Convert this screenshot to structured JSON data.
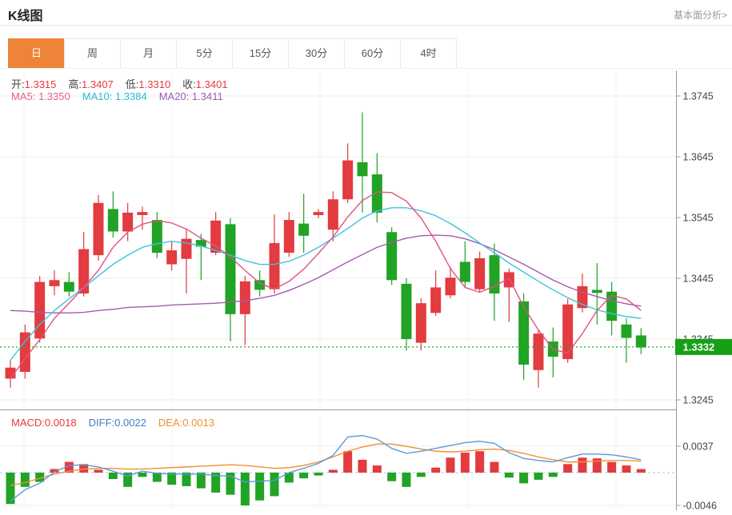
{
  "header": {
    "title": "K线图",
    "analysis_link": "基本面分析>"
  },
  "tabs": {
    "items": [
      {
        "label": "日",
        "active": true
      },
      {
        "label": "周",
        "active": false
      },
      {
        "label": "月",
        "active": false
      },
      {
        "label": "5分",
        "active": false
      },
      {
        "label": "15分",
        "active": false
      },
      {
        "label": "30分",
        "active": false
      },
      {
        "label": "60分",
        "active": false
      },
      {
        "label": "4时",
        "active": false
      }
    ]
  },
  "ohlc_legend": {
    "open_label": "开:",
    "open": "1.3315",
    "high_label": "高:",
    "high": "1.3407",
    "low_label": "低:",
    "low": "1.3310",
    "close_label": "收:",
    "close": "1.3401"
  },
  "ma_legend": {
    "ma5_label": "MA5:",
    "ma5": "1.3350",
    "ma10_label": "MA10:",
    "ma10": "1.3384",
    "ma20_label": "MA20:",
    "ma20": "1.3411"
  },
  "macd_legend": {
    "macd_label": "MACD:",
    "macd": "0.0018",
    "diff_label": "DIFF:",
    "diff": "0.0022",
    "dea_label": "DEA:",
    "dea": "0.0013"
  },
  "price_axis": {
    "ticks": [
      "1.3745",
      "1.3645",
      "1.3545",
      "1.3445",
      "1.3345",
      "1.3245"
    ],
    "current": "1.3332"
  },
  "macd_axis": {
    "ticks": [
      "0.0037",
      "-0.0046"
    ]
  },
  "colors": {
    "up": "#e23b40",
    "down": "#21a325",
    "ma5": "#e0547e",
    "ma10": "#3fc3dc",
    "ma20": "#a55ab0",
    "diff": "#5b9bd5",
    "dea": "#f09033",
    "ma5_text": "#e8608c",
    "ma10_text": "#29b9d0",
    "ma20_text": "#9b59b6",
    "diff_text": "#3f7fc1",
    "dea_text": "#ef8f2f",
    "tab_accent": "#ed8437",
    "grid": "#ededed",
    "axis": "#999999",
    "current_line": "#2aa52a",
    "current_badge": "#16a016",
    "zero_dash": "#a9c9e9"
  },
  "chart_data": {
    "type": "candlestick",
    "title": "K线图 daily candlestick with MA5/MA10/MA20 and MACD",
    "price_range": [
      1.3245,
      1.3745
    ],
    "macd_range": [
      -0.0046,
      0.0037
    ],
    "current_price": 1.3332,
    "grid": true,
    "candles_ohlc": [
      [
        1.328,
        1.331,
        1.3265,
        1.3298
      ],
      [
        1.3291,
        1.3369,
        1.328,
        1.3356
      ],
      [
        1.3346,
        1.3449,
        1.3339,
        1.3439
      ],
      [
        1.3432,
        1.3458,
        1.3417,
        1.3442
      ],
      [
        1.3439,
        1.3455,
        1.3415,
        1.3423
      ],
      [
        1.342,
        1.3521,
        1.3415,
        1.3493
      ],
      [
        1.3483,
        1.3582,
        1.3474,
        1.3569
      ],
      [
        1.3559,
        1.3588,
        1.3512,
        1.3522
      ],
      [
        1.3522,
        1.3569,
        1.3506,
        1.3553
      ],
      [
        1.3549,
        1.3563,
        1.3525,
        1.3554
      ],
      [
        1.3541,
        1.3554,
        1.3478,
        1.3487
      ],
      [
        1.3468,
        1.3506,
        1.3458,
        1.3491
      ],
      [
        1.3477,
        1.3525,
        1.342,
        1.351
      ],
      [
        1.3508,
        1.3518,
        1.3442,
        1.3497
      ],
      [
        1.3487,
        1.3554,
        1.3483,
        1.354
      ],
      [
        1.3534,
        1.3544,
        1.3341,
        1.3386
      ],
      [
        1.3386,
        1.3449,
        1.3335,
        1.344
      ],
      [
        1.3442,
        1.3458,
        1.3415,
        1.3426
      ],
      [
        1.3427,
        1.355,
        1.342,
        1.3503
      ],
      [
        1.3487,
        1.3554,
        1.348,
        1.3541
      ],
      [
        1.3535,
        1.3584,
        1.3487,
        1.3515
      ],
      [
        1.3549,
        1.3559,
        1.3544,
        1.3554
      ],
      [
        1.3525,
        1.3588,
        1.3506,
        1.3575
      ],
      [
        1.3575,
        1.3667,
        1.3569,
        1.3639
      ],
      [
        1.3636,
        1.3718,
        1.3553,
        1.3613
      ],
      [
        1.3616,
        1.3651,
        1.3537,
        1.3553
      ],
      [
        1.3521,
        1.3529,
        1.3434,
        1.3442
      ],
      [
        1.3436,
        1.3445,
        1.3326,
        1.3345
      ],
      [
        1.3339,
        1.3412,
        1.3326,
        1.3404
      ],
      [
        1.3388,
        1.3458,
        1.3383,
        1.343
      ],
      [
        1.3417,
        1.3464,
        1.3412,
        1.3446
      ],
      [
        1.3472,
        1.3506,
        1.343,
        1.3439
      ],
      [
        1.3427,
        1.3489,
        1.3422,
        1.3478
      ],
      [
        1.3483,
        1.3502,
        1.3375,
        1.342
      ],
      [
        1.343,
        1.3461,
        1.3373,
        1.3455
      ],
      [
        1.3407,
        1.342,
        1.3278,
        1.3303
      ],
      [
        1.3294,
        1.336,
        1.3265,
        1.3354
      ],
      [
        1.3341,
        1.3364,
        1.3282,
        1.3316
      ],
      [
        1.3312,
        1.3411,
        1.3306,
        1.3402
      ],
      [
        1.3396,
        1.3453,
        1.3389,
        1.3432
      ],
      [
        1.3426,
        1.347,
        1.3369,
        1.3421
      ],
      [
        1.3423,
        1.3439,
        1.3351,
        1.3375
      ],
      [
        1.3369,
        1.3379,
        1.3306,
        1.3347
      ],
      [
        1.3351,
        1.3363,
        1.332,
        1.3331
      ]
    ],
    "ma5": [
      1.328,
      1.3313,
      1.3344,
      1.3379,
      1.3404,
      1.343,
      1.3458,
      1.3496,
      1.3521,
      1.3534,
      1.354,
      1.3536,
      1.3526,
      1.3511,
      1.3498,
      1.348,
      1.3458,
      1.3437,
      1.3427,
      1.344,
      1.346,
      1.3486,
      1.3513,
      1.3546,
      1.3573,
      1.3587,
      1.3586,
      1.3572,
      1.3544,
      1.3506,
      1.3461,
      1.343,
      1.3422,
      1.3432,
      1.3445,
      1.3398,
      1.336,
      1.3328,
      1.3322,
      1.3354,
      1.3392,
      1.3417,
      1.3411,
      1.3392
    ],
    "ma10": [
      1.331,
      1.3341,
      1.3369,
      1.3392,
      1.3411,
      1.343,
      1.3449,
      1.3468,
      1.3483,
      1.3496,
      1.3502,
      1.3506,
      1.3503,
      1.3498,
      1.3491,
      1.3483,
      1.3474,
      1.3468,
      1.3468,
      1.3473,
      1.3483,
      1.3496,
      1.3511,
      1.3527,
      1.3544,
      1.3556,
      1.3561,
      1.3561,
      1.3556,
      1.3548,
      1.3535,
      1.352,
      1.3503,
      1.3487,
      1.347,
      1.3455,
      1.344,
      1.3426,
      1.3413,
      1.3402,
      1.3393,
      1.3387,
      1.3382,
      1.3379
    ],
    "ma20": [
      1.3392,
      1.3391,
      1.3389,
      1.3388,
      1.3388,
      1.3389,
      1.3392,
      1.3394,
      1.3397,
      1.3398,
      1.3399,
      1.3401,
      1.3402,
      1.3403,
      1.3404,
      1.3406,
      1.3408,
      1.3412,
      1.3417,
      1.3425,
      1.3435,
      1.3446,
      1.3459,
      1.3472,
      1.3484,
      1.3496,
      1.3504,
      1.3511,
      1.3515,
      1.3516,
      1.3515,
      1.351,
      1.3502,
      1.3492,
      1.348,
      1.3468,
      1.3455,
      1.3442,
      1.3431,
      1.3422,
      1.3415,
      1.3408,
      1.3403,
      1.3399
    ],
    "macd_hist": [
      -0.0044,
      -0.002,
      -0.0013,
      0.0005,
      0.0015,
      0.0012,
      0.0004,
      -0.0009,
      -0.002,
      -0.0006,
      -0.0013,
      -0.0017,
      -0.0019,
      -0.0022,
      -0.0028,
      -0.0031,
      -0.0046,
      -0.0039,
      -0.0033,
      -0.0014,
      -0.0008,
      -0.0004,
      0.0004,
      0.003,
      0.0018,
      0.001,
      -0.0012,
      -0.002,
      -0.0006,
      0.0007,
      0.0021,
      0.0028,
      0.003,
      0.0015,
      -0.0007,
      -0.0015,
      -0.001,
      -0.0006,
      0.0012,
      0.0021,
      0.002,
      0.0015,
      0.001,
      0.0005
    ],
    "diff_line": [
      -0.004,
      -0.0024,
      -0.0015,
      0.0001,
      0.001,
      0.0011,
      0.0008,
      0.0002,
      -0.0005,
      0.0002,
      -0.0001,
      -0.0002,
      -0.0002,
      -0.0002,
      -0.0004,
      -0.0005,
      -0.0013,
      -0.0012,
      -0.0011,
      0.0,
      0.0006,
      0.0013,
      0.0024,
      0.005,
      0.0052,
      0.0047,
      0.0034,
      0.0027,
      0.003,
      0.0034,
      0.0038,
      0.0042,
      0.0044,
      0.0041,
      0.0028,
      0.002,
      0.0017,
      0.0015,
      0.0021,
      0.0026,
      0.0026,
      0.0025,
      0.0022,
      0.0018
    ],
    "dea_line": [
      -0.0018,
      -0.0014,
      -0.0008,
      -0.0002,
      0.0002,
      0.0005,
      0.0006,
      0.0006,
      0.0005,
      0.0005,
      0.0006,
      0.0007,
      0.0008,
      0.0009,
      0.001,
      0.0011,
      0.001,
      0.0008,
      0.0006,
      0.0007,
      0.001,
      0.0015,
      0.0022,
      0.003,
      0.0036,
      0.004,
      0.004,
      0.0037,
      0.0033,
      0.003,
      0.0029,
      0.003,
      0.0032,
      0.0033,
      0.0031,
      0.0027,
      0.0022,
      0.0018,
      0.0015,
      0.0015,
      0.0016,
      0.0017,
      0.0017,
      0.0016
    ]
  }
}
